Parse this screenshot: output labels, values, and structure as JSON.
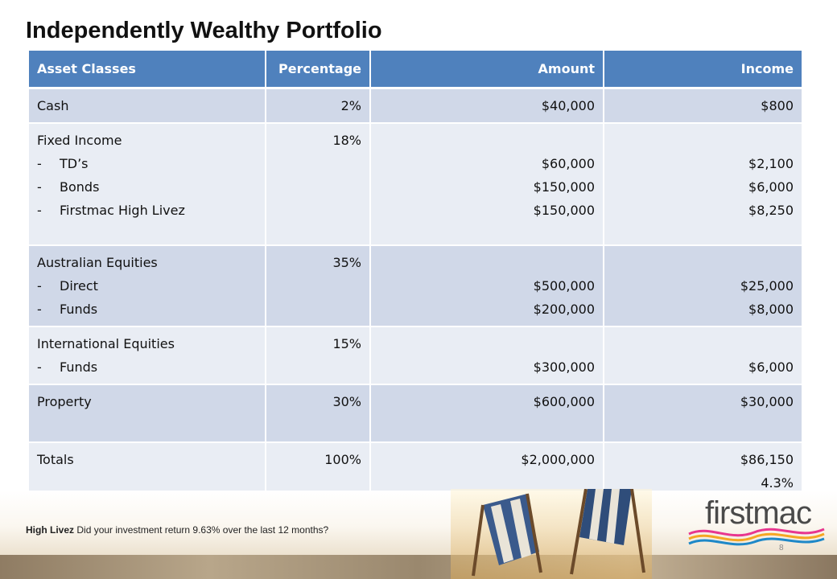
{
  "title": "Independently Wealthy Portfolio",
  "table": {
    "headers": [
      "Asset Classes",
      "Percentage",
      "Amount",
      "Income"
    ],
    "rows": [
      {
        "name": "Cash",
        "subs": [],
        "percentage": "2%",
        "amounts": [
          "$40,000"
        ],
        "incomes": [
          "$800"
        ]
      },
      {
        "name": "Fixed Income",
        "subs": [
          "TD’s",
          "Bonds",
          "Firstmac High Livez"
        ],
        "percentage": "18%",
        "amounts": [
          "$60,000",
          "$150,000",
          "$150,000"
        ],
        "incomes": [
          "$2,100",
          "$6,000",
          "$8,250"
        ]
      },
      {
        "name": "Australian Equities",
        "subs": [
          "Direct",
          "Funds"
        ],
        "percentage": "35%",
        "amounts": [
          "$500,000",
          "$200,000"
        ],
        "incomes": [
          "$25,000",
          "$8,000"
        ]
      },
      {
        "name": "International Equities",
        "subs": [
          "Funds"
        ],
        "percentage": "15%",
        "amounts": [
          "$300,000"
        ],
        "incomes": [
          "$6,000"
        ]
      },
      {
        "name": "Property",
        "subs": [],
        "percentage": "30%",
        "amounts": [
          "$600,000"
        ],
        "incomes": [
          "$30,000"
        ]
      },
      {
        "name": "Totals",
        "subs": [],
        "percentage": "100%",
        "amounts": [
          "$2,000,000"
        ],
        "incomes": [
          "$86,150",
          "4.3%"
        ]
      }
    ],
    "dash": "-"
  },
  "footer": {
    "note_bold": "High Livez",
    "note_text": "Did your investment return 9.63% over the last 12 months?",
    "page_number": "8"
  },
  "logo": {
    "text": "firstmac"
  },
  "colors": {
    "header_bg": "#4f81bd",
    "row_dark": "#d0d8e8",
    "row_light": "#e9edf4",
    "logo_wave_pink": "#e8368f",
    "logo_wave_orange": "#f5a623",
    "logo_wave_blue": "#1e88c8"
  }
}
